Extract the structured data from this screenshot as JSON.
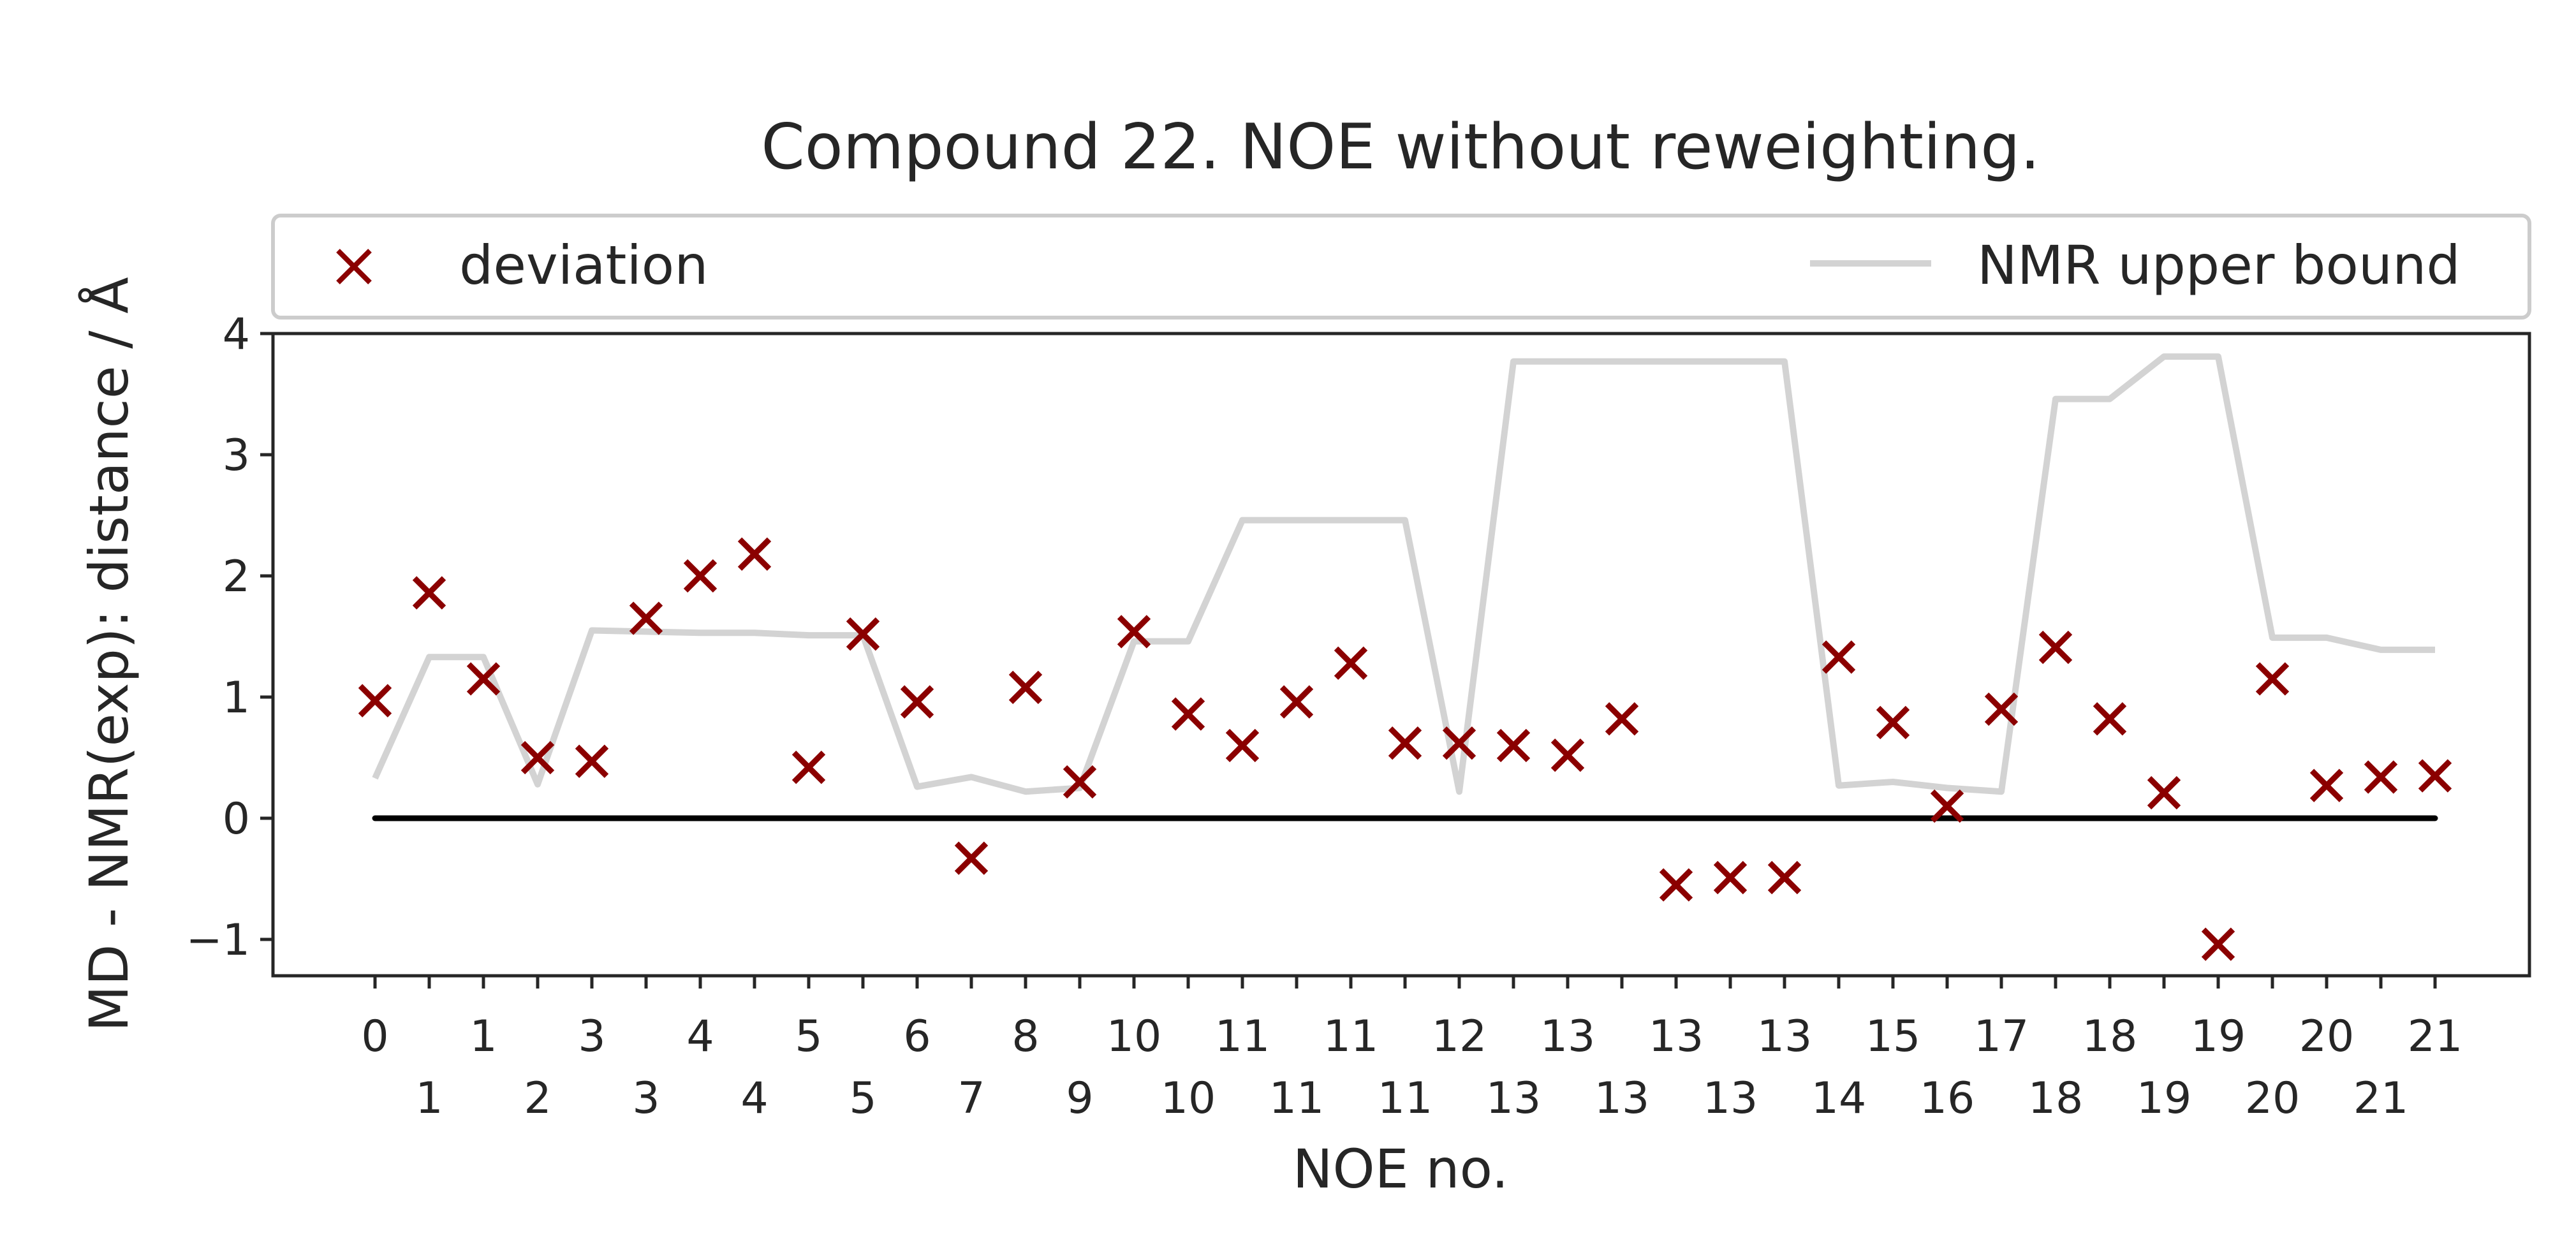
{
  "chart_data": {
    "type": "scatter",
    "title": "Compound 22. NOE without reweighting.",
    "xlabel": "NOE no.",
    "ylabel": "MD - NMR(exp): distance / Å",
    "ylim": [
      -1.3,
      4.0
    ],
    "yticks": [
      "−1",
      "0",
      "1",
      "2",
      "3",
      "4"
    ],
    "ytick_values": [
      -1,
      0,
      1,
      2,
      3,
      4
    ],
    "xtick_labels": [
      "0",
      "1",
      "1",
      "2",
      "3",
      "3",
      "4",
      "4",
      "5",
      "5",
      "6",
      "7",
      "8",
      "9",
      "10",
      "10",
      "11",
      "11",
      "11",
      "11",
      "12",
      "13",
      "13",
      "13",
      "13",
      "13",
      "13",
      "14",
      "15",
      "16",
      "17",
      "18",
      "18",
      "19",
      "19",
      "20",
      "20",
      "21",
      "21"
    ],
    "grid": false,
    "legend_placement": "top, above plot",
    "series": [
      {
        "name": "deviation",
        "marker": "x",
        "color": "#8b0000",
        "values": [
          0.97,
          1.86,
          1.15,
          0.5,
          0.47,
          1.65,
          2.0,
          2.18,
          0.42,
          1.52,
          0.96,
          -0.33,
          1.08,
          0.3,
          1.54,
          0.86,
          0.6,
          0.96,
          1.28,
          0.62,
          0.62,
          0.6,
          0.52,
          0.82,
          -0.55,
          -0.49,
          -0.49,
          1.33,
          0.79,
          0.1,
          0.9,
          1.41,
          0.82,
          0.21,
          -1.04,
          1.15,
          0.27,
          0.34,
          0.35
        ]
      },
      {
        "name": "NMR upper bound",
        "marker": "line",
        "color": "#d3d3d3",
        "values": [
          0.33,
          1.33,
          1.33,
          0.28,
          1.55,
          1.54,
          1.53,
          1.53,
          1.51,
          1.51,
          0.26,
          0.34,
          0.22,
          0.25,
          1.46,
          1.46,
          2.46,
          2.46,
          2.46,
          2.46,
          0.22,
          3.77,
          3.77,
          3.77,
          3.77,
          3.77,
          3.77,
          0.27,
          0.3,
          0.25,
          0.22,
          3.46,
          3.46,
          3.81,
          3.81,
          1.49,
          1.49,
          1.39,
          1.39
        ]
      }
    ],
    "reference_line": {
      "y": 0,
      "color": "#000000"
    }
  }
}
